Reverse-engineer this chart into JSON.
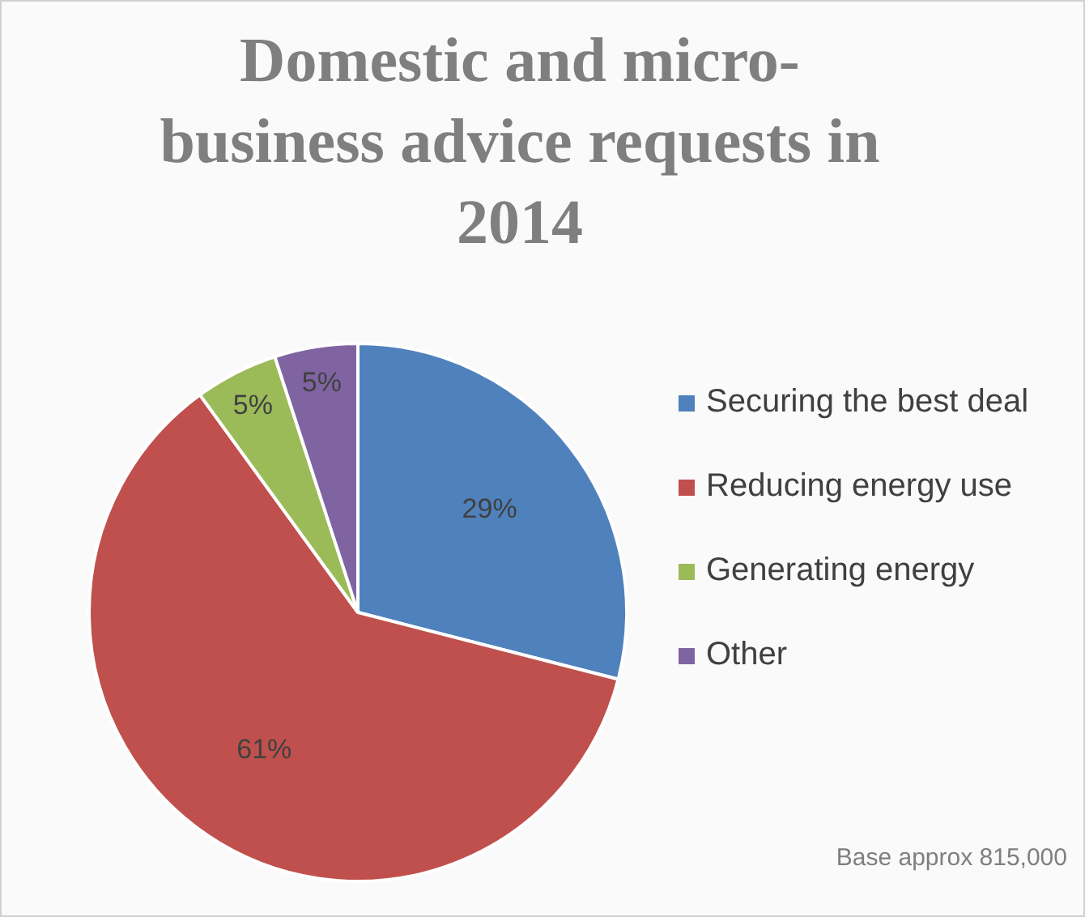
{
  "chart_data": {
    "type": "pie",
    "title": "Domestic and micro-business advice requests in 2014",
    "categories": [
      "Securing the best deal",
      "Reducing energy use",
      "Generating energy",
      "Other"
    ],
    "values": [
      29,
      61,
      5,
      5
    ],
    "colors": [
      "#4f81bd",
      "#c0504d",
      "#9bbb59",
      "#8064a2"
    ],
    "value_labels": [
      "29%",
      "61%",
      "5%",
      "5%"
    ],
    "legend": "right",
    "annotations": [
      "Base approx 815,000"
    ]
  }
}
